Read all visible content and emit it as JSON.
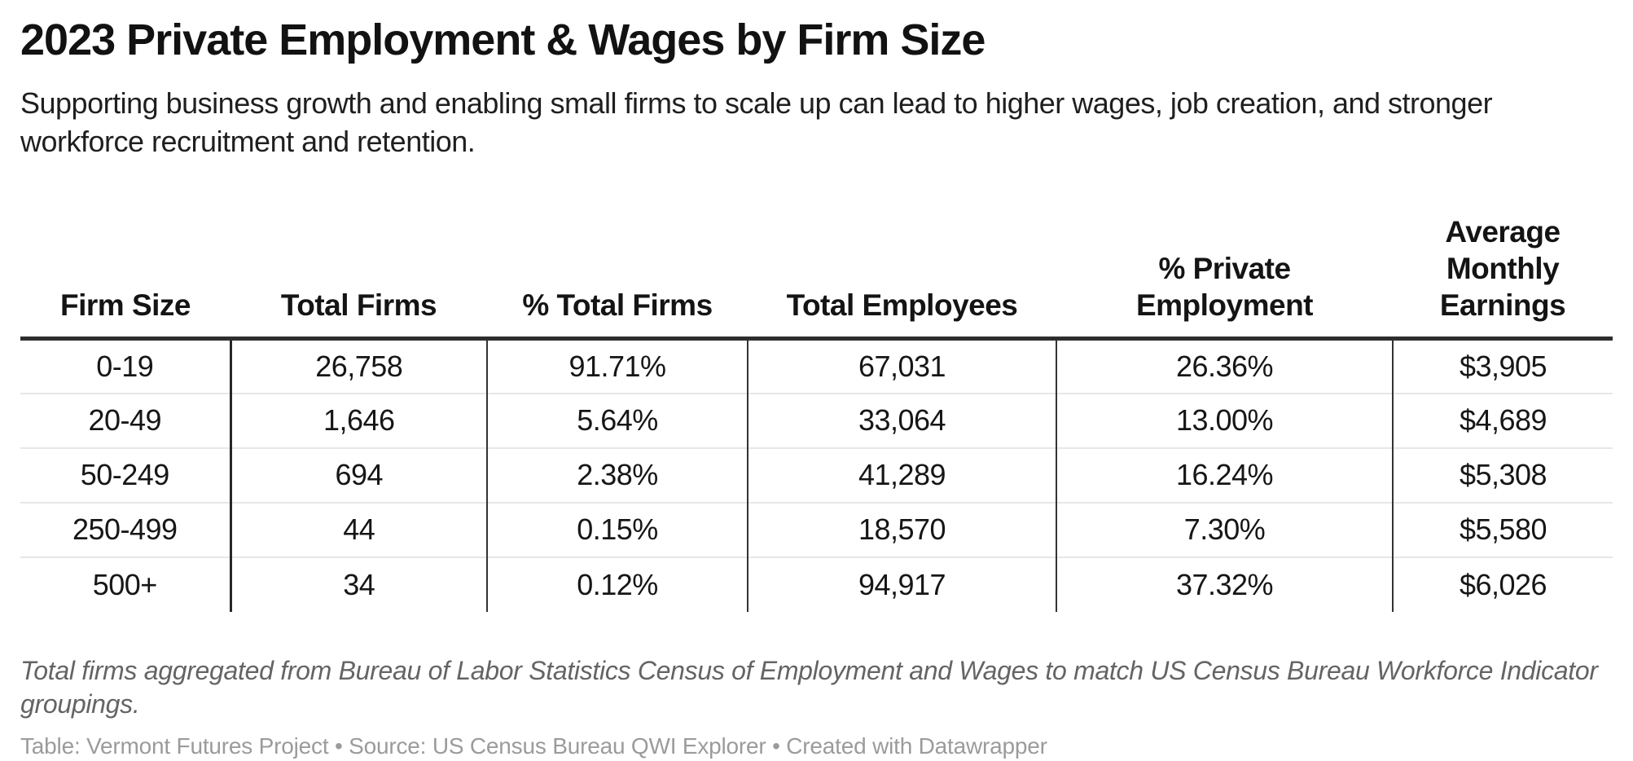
{
  "header": {
    "title": "2023 Private Employment & Wages by Firm Size",
    "subtitle": "Supporting business growth and enabling small firms to scale up can lead to higher wages, job creation, and stronger workforce recruitment and retention."
  },
  "chart_data": {
    "type": "table",
    "title": "2023 Private Employment & Wages by Firm Size",
    "subtitle": "Supporting business growth and enabling small firms to scale up can lead to higher wages, job creation, and stronger workforce recruitment and retention.",
    "columns": [
      "Firm Size",
      "Total Firms",
      "% Total Firms",
      "Total Employees",
      "% Private Employment",
      "Average Monthly Earnings"
    ],
    "rows": [
      [
        "0-19",
        "26,758",
        "91.71%",
        "67,031",
        "26.36%",
        "$3,905"
      ],
      [
        "20-49",
        "1,646",
        "5.64%",
        "33,064",
        "13.00%",
        "$4,689"
      ],
      [
        "50-249",
        "694",
        "2.38%",
        "41,289",
        "16.24%",
        "$5,308"
      ],
      [
        "250-499",
        "44",
        "0.15%",
        "18,570",
        "7.30%",
        "$5,580"
      ],
      [
        "500+",
        "34",
        "0.12%",
        "94,917",
        "37.32%",
        "$6,026"
      ]
    ],
    "layout": {
      "header_rule_color": "#2d2d2d",
      "column_divider_color": "#2b2b2b",
      "row_separator_color": "#e7e7e7",
      "text_color": "#161616"
    }
  },
  "footer": {
    "note": "Total firms aggregated from Bureau of Labor Statistics Census of Employment and Wages to match US Census Bureau Workforce Indicator groupings.",
    "attribution": "Table: Vermont Futures Project • Source: US Census Bureau QWI Explorer  • Created with Datawrapper"
  }
}
